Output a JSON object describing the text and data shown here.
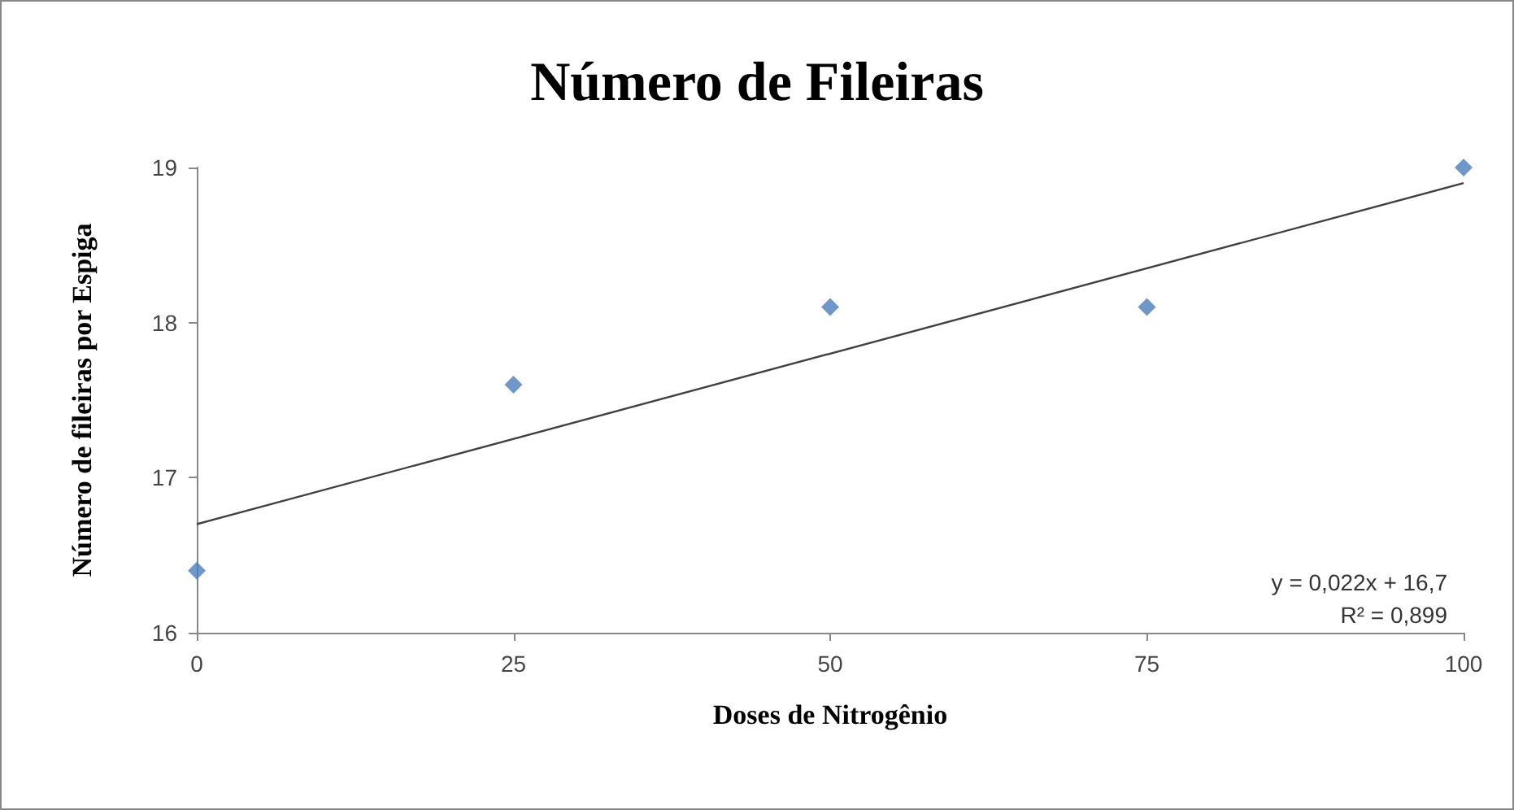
{
  "chart_data": {
    "type": "scatter",
    "title": "Número de Fileiras",
    "xlabel": "Doses de Nitrogênio",
    "ylabel": "Número de fileiras por Espiga",
    "x": [
      0,
      25,
      50,
      75,
      100
    ],
    "series": [
      {
        "color": "#4a7ebb",
        "marker": "diamond",
        "values": [
          16.4,
          17.6,
          18.1,
          18.1,
          19.0
        ]
      },
      {
        "type": "line",
        "color": "#404040",
        "marker": "none",
        "x": [
          0,
          100
        ],
        "values": [
          16.7,
          18.9
        ]
      }
    ],
    "xlim": [
      0,
      100
    ],
    "xticks": [
      0,
      25,
      50,
      75,
      100
    ],
    "ylim": [
      16,
      19
    ],
    "yticks": [
      16,
      17,
      18,
      19
    ],
    "grid": false,
    "annotations": [
      "y = 0,022x + 16,7",
      "R² = 0,899"
    ]
  }
}
